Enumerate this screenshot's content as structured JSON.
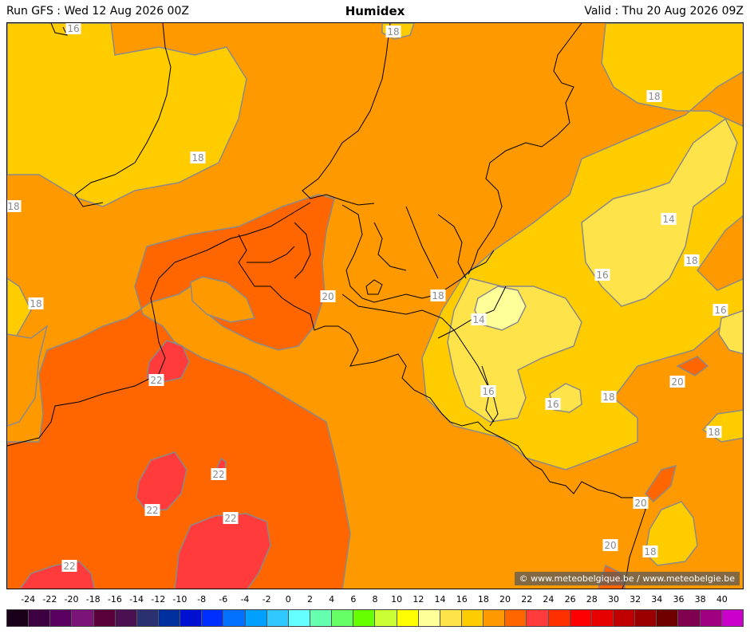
{
  "header": {
    "run": "Run GFS : Wed 12 Aug 2026 00Z",
    "title": "Humidex",
    "valid": "Valid : Thu 20 Aug 2026 09Z"
  },
  "credit": "© www.meteobelgique.be / www.meteobelgie.be",
  "contour_labels": [
    "16",
    "18",
    "18",
    "18",
    "18",
    "14",
    "18",
    "16",
    "18",
    "16",
    "20",
    "18",
    "14",
    "16",
    "16",
    "18",
    "20",
    "22",
    "22",
    "22",
    "22",
    "18",
    "20",
    "20",
    "18",
    "22"
  ],
  "colors": {
    "v14": "#ffff99",
    "v16": "#ffe34a",
    "v18": "#ffcc00",
    "v20": "#ff9900",
    "v22": "#ff6600",
    "v24": "#ff3b3b",
    "contour": "#8a8a8a",
    "border": "#000000"
  },
  "scale": {
    "ticks": [
      "-24",
      "-22",
      "-20",
      "-18",
      "-16",
      "-14",
      "-12",
      "-10",
      "-8",
      "-6",
      "-4",
      "-2",
      "0",
      "2",
      "4",
      "6",
      "8",
      "10",
      "12",
      "14",
      "16",
      "18",
      "20",
      "22",
      "24",
      "26",
      "28",
      "30",
      "32",
      "34",
      "36",
      "38",
      "40"
    ],
    "colors": [
      "#1a0018",
      "#3d0040",
      "#5a0060",
      "#7a1478",
      "#5a003a",
      "#4a1050",
      "#2a3070",
      "#0030a0",
      "#0010d0",
      "#0030ff",
      "#0070ff",
      "#00a0ff",
      "#30c8ff",
      "#66ffff",
      "#66ffb0",
      "#66ff66",
      "#66ff00",
      "#ccff33",
      "#ffff00",
      "#ffff99",
      "#ffe34a",
      "#ffcc00",
      "#ff9900",
      "#ff6600",
      "#ff3b3b",
      "#ff3000",
      "#ff0000",
      "#e60000",
      "#c00000",
      "#9a0000",
      "#700000",
      "#800050",
      "#a00080",
      "#cc00cc"
    ]
  }
}
